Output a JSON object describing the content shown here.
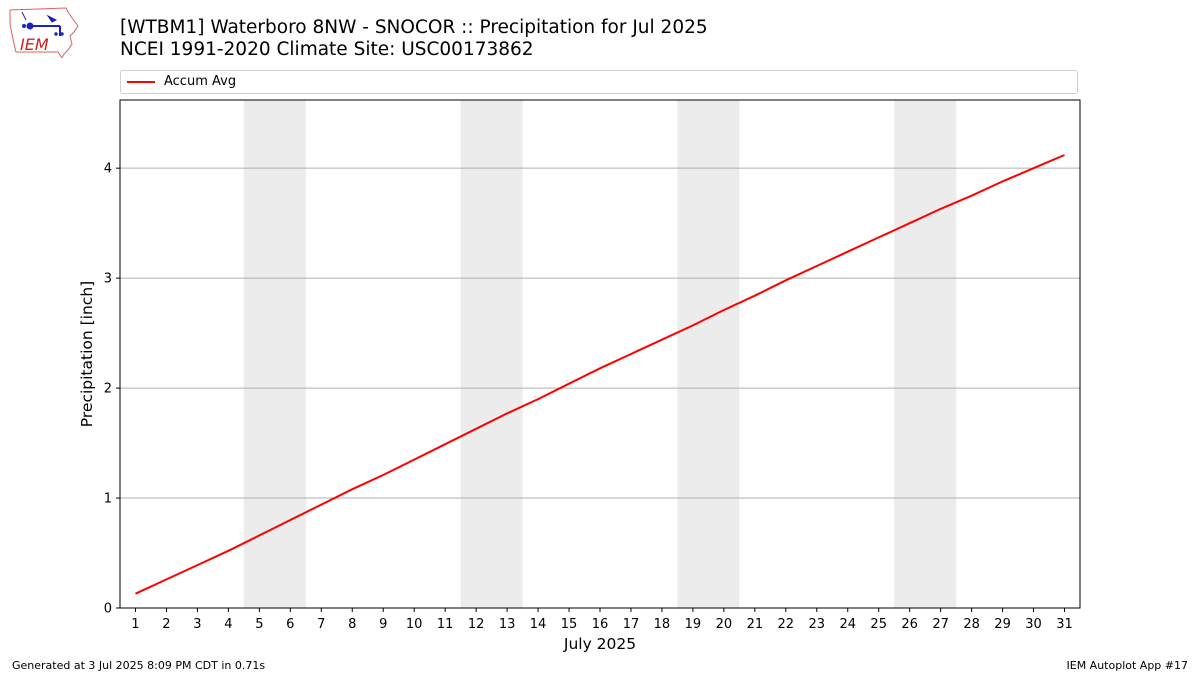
{
  "title": {
    "line1": "[WTBM1] Waterboro 8NW - SNOCOR :: Precipitation for Jul 2025",
    "line2": "NCEI 1991-2020 Climate Site: USC00173862"
  },
  "logo": {
    "text": "IEM",
    "icon": "iem-iowa-logo"
  },
  "legend": {
    "entries": [
      {
        "label": "Accum Avg",
        "color": "#ff0000"
      }
    ],
    "placement": "top, full width"
  },
  "footer": {
    "left": "Generated at 3 Jul 2025 8:09 PM CDT in 0.71s",
    "right": "IEM Autoplot App #17"
  },
  "chart_data": {
    "type": "line",
    "title": "[WTBM1] Waterboro 8NW - SNOCOR :: Precipitation for Jul 2025",
    "xlabel": "July 2025",
    "ylabel": "Precipitation [inch]",
    "x": [
      1,
      2,
      3,
      4,
      5,
      6,
      7,
      8,
      9,
      10,
      11,
      12,
      13,
      14,
      15,
      16,
      17,
      18,
      19,
      20,
      21,
      22,
      23,
      24,
      25,
      26,
      27,
      28,
      29,
      30,
      31
    ],
    "xlim": [
      0.5,
      31.5
    ],
    "ylim": [
      0,
      4.62
    ],
    "yticks": [
      0,
      1,
      2,
      3,
      4
    ],
    "grid": "horizontal",
    "weekend_shading": [
      [
        4.5,
        6.5
      ],
      [
        11.5,
        13.5
      ],
      [
        18.5,
        20.5
      ],
      [
        25.5,
        27.5
      ]
    ],
    "series": [
      {
        "name": "Accum Avg",
        "color": "#ff0000",
        "values": [
          0.13,
          0.26,
          0.39,
          0.52,
          0.66,
          0.8,
          0.94,
          1.08,
          1.21,
          1.35,
          1.49,
          1.63,
          1.77,
          1.9,
          2.04,
          2.18,
          2.31,
          2.44,
          2.57,
          2.71,
          2.84,
          2.98,
          3.11,
          3.24,
          3.37,
          3.5,
          3.63,
          3.75,
          3.88,
          4.0,
          4.12
        ]
      }
    ]
  }
}
